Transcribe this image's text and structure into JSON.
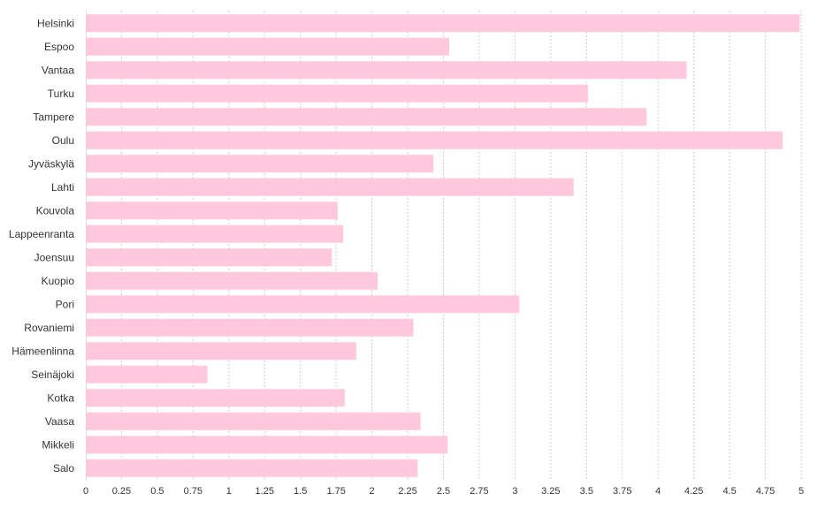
{
  "chart_data": {
    "type": "bar",
    "orientation": "horizontal",
    "categories": [
      "Helsinki",
      "Espoo",
      "Vantaa",
      "Turku",
      "Tampere",
      "Oulu",
      "Jyväskylä",
      "Lahti",
      "Kouvola",
      "Lappeenranta",
      "Joensuu",
      "Kuopio",
      "Pori",
      "Rovaniemi",
      "Hämeenlinna",
      "Seinäjoki",
      "Kotka",
      "Vaasa",
      "Mikkeli",
      "Salo"
    ],
    "values": [
      4.99,
      2.54,
      4.2,
      3.51,
      3.92,
      4.87,
      2.43,
      3.41,
      1.76,
      1.8,
      1.72,
      2.04,
      3.03,
      2.29,
      1.89,
      0.85,
      1.81,
      2.34,
      2.53,
      2.32
    ],
    "xlim": [
      0,
      5
    ],
    "xticks": [
      "0",
      "0.25",
      "0.5",
      "0.75",
      "1",
      "1.25",
      "1.5",
      "1.75",
      "2",
      "2.25",
      "2.5",
      "2.75",
      "3",
      "3.25",
      "3.5",
      "3.75",
      "4",
      "4.25",
      "4.5",
      "4.75",
      "5"
    ],
    "title": "",
    "xlabel": "",
    "ylabel": "",
    "grid": "vertical-dotted",
    "colors": {
      "bar": "#ffc8dc",
      "grid": "#cfcfcf",
      "axis": "#d9d9d9",
      "text": "#333333"
    }
  }
}
